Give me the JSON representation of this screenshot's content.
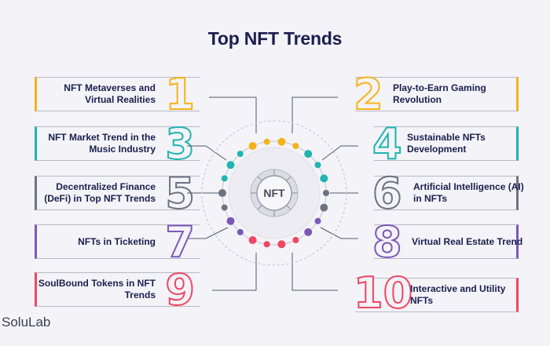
{
  "title": "Top NFT Trends",
  "center_badge": "NFT",
  "brand": "SoluLab",
  "trends": [
    {
      "num": "1",
      "label": "NFT Metaverses and Virtual Realities",
      "color": "#f5b31a",
      "side": "left"
    },
    {
      "num": "2",
      "label": "Play-to-Earn Gaming Revolution",
      "color": "#f5b31a",
      "side": "right"
    },
    {
      "num": "3",
      "label": "NFT Market Trend in the Music Industry",
      "color": "#1fb5b0",
      "side": "left"
    },
    {
      "num": "4",
      "label": "Sustainable NFTs Development",
      "color": "#1fb5b0",
      "side": "right"
    },
    {
      "num": "5",
      "label": "Decentralized Finance (DeFi) in Top NFT Trends",
      "color": "#6c7380",
      "side": "left"
    },
    {
      "num": "6",
      "label": "Artificial Intelligence (AI) in NFTs",
      "color": "#6c7380",
      "side": "right"
    },
    {
      "num": "7",
      "label": "NFTs in Ticketing",
      "color": "#7b58b6",
      "side": "left"
    },
    {
      "num": "8",
      "label": "Virtual Real Estate Trend",
      "color": "#7b58b6",
      "side": "right"
    },
    {
      "num": "9",
      "label": "SoulBound Tokens in NFT Trends",
      "color": "#ee4663",
      "side": "left"
    },
    {
      "num": "10",
      "label": "Interactive and Utility NFTs",
      "color": "#ee4663",
      "side": "right"
    }
  ]
}
